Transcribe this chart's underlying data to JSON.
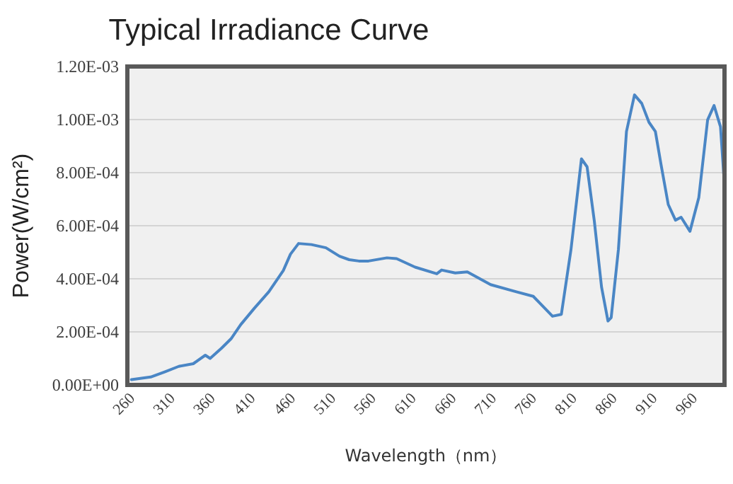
{
  "chart_data": {
    "type": "line",
    "title": "Typical Irradiance Curve",
    "xlabel": "Wavelength（nm）",
    "ylabel": "Power(W/cm²)",
    "x": [
      260,
      284,
      302,
      319,
      337,
      352,
      358,
      372,
      384,
      396,
      413,
      431,
      449,
      458,
      468,
      484,
      502,
      519,
      531,
      543,
      555,
      578,
      590,
      613,
      640,
      646,
      663,
      678,
      707,
      739,
      760,
      784,
      795,
      807,
      820,
      827,
      836,
      845,
      853,
      857,
      866,
      876,
      886,
      895,
      904,
      912,
      919,
      928,
      937,
      944,
      955,
      966,
      977,
      985,
      993,
      997
    ],
    "series": [
      {
        "color": "#4a86c5",
        "values": [
          2e-05,
          3e-05,
          5e-05,
          7e-05,
          8e-05,
          0.000112,
          0.0001,
          0.000138,
          0.000174,
          0.000227,
          0.000289,
          0.000351,
          0.000431,
          0.000493,
          0.000533,
          0.000529,
          0.000517,
          0.000485,
          0.000472,
          0.000467,
          0.000467,
          0.000479,
          0.000476,
          0.000444,
          0.000419,
          0.000433,
          0.000422,
          0.000426,
          0.000378,
          0.000351,
          0.000334,
          0.000259,
          0.000266,
          0.000511,
          0.000852,
          0.000822,
          0.000618,
          0.000369,
          0.000241,
          0.000254,
          0.000511,
          0.000955,
          0.001093,
          0.001061,
          0.00099,
          0.000955,
          0.000831,
          0.00068,
          0.000621,
          0.000632,
          0.000579,
          0.000706,
          0.000999,
          0.001053,
          0.000973,
          0.000795
        ]
      }
    ],
    "xlim": [
      255,
      998
    ],
    "xticks": [
      260,
      310,
      360,
      410,
      460,
      510,
      560,
      610,
      660,
      710,
      760,
      810,
      860,
      910,
      960
    ],
    "ylim": [
      0,
      0.0012
    ],
    "yticks": [
      {
        "value": 0,
        "label": "0.00E+00"
      },
      {
        "value": 0.0002,
        "label": "2.00E-04"
      },
      {
        "value": 0.0004,
        "label": "4.00E-04"
      },
      {
        "value": 0.0006,
        "label": "6.00E-04"
      },
      {
        "value": 0.0008,
        "label": "8.00E-04"
      },
      {
        "value": 0.001,
        "label": "1.00E-03"
      },
      {
        "value": 0.0012,
        "label": "1.20E-03"
      }
    ],
    "grid": "y",
    "marker": "none",
    "line_style": "solid"
  }
}
